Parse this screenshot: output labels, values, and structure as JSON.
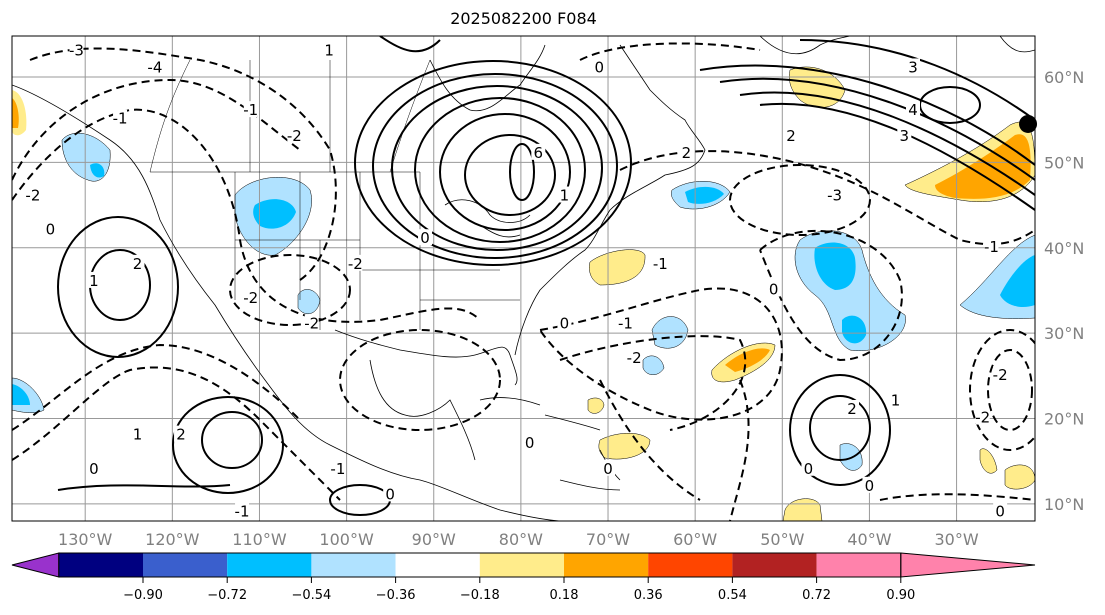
{
  "title": "2025082200 F084",
  "chart_data": {
    "type": "contour-map",
    "title": "2025082200 F084",
    "lon_range": [
      -138.4,
      -21
    ],
    "lat_range": [
      8,
      64.8
    ],
    "x_ticks": [
      {
        "v": -130,
        "label": "130°W"
      },
      {
        "v": -120,
        "label": "120°W"
      },
      {
        "v": -110,
        "label": "110°W"
      },
      {
        "v": -100,
        "label": "100°W"
      },
      {
        "v": -90,
        "label": "90°W"
      },
      {
        "v": -80,
        "label": "80°W"
      },
      {
        "v": -70,
        "label": "70°W"
      },
      {
        "v": -60,
        "label": "60°W"
      },
      {
        "v": -50,
        "label": "50°W"
      },
      {
        "v": -40,
        "label": "40°W"
      },
      {
        "v": -30,
        "label": "30°W"
      }
    ],
    "y_ticks": [
      {
        "v": 60,
        "label": "60°N"
      },
      {
        "v": 50,
        "label": "50°N"
      },
      {
        "v": 40,
        "label": "40°N"
      },
      {
        "v": 30,
        "label": "30°N"
      },
      {
        "v": 20,
        "label": "20°N"
      },
      {
        "v": 10,
        "label": "10°N"
      }
    ],
    "grid": true,
    "colorbar": {
      "orientation": "horizontal",
      "extend": "both",
      "levels": [
        -0.9,
        -0.72,
        -0.54,
        -0.36,
        -0.18,
        0.18,
        0.36,
        0.54,
        0.72,
        0.9
      ],
      "labels": [
        "−0.90",
        "−0.72",
        "−0.54",
        "−0.36",
        "−0.18",
        "0.18",
        "0.36",
        "0.54",
        "0.72",
        "0.90"
      ],
      "colors": [
        "#9932CC",
        "#000080",
        "#3A5FCD",
        "#00BFFF",
        "#B0E2FF",
        "#FFFFFF",
        "#FFEC8B",
        "#FFA500",
        "#FF4500",
        "#B22222",
        "#FF82AB"
      ]
    },
    "contour_labels": [
      {
        "lon": -131,
        "lat": 63,
        "text": "-3"
      },
      {
        "lon": -122,
        "lat": 61,
        "text": "-4"
      },
      {
        "lon": -126,
        "lat": 55,
        "text": "-1"
      },
      {
        "lon": -136,
        "lat": 46,
        "text": "-2"
      },
      {
        "lon": -134,
        "lat": 42,
        "text": "0"
      },
      {
        "lon": -129,
        "lat": 36,
        "text": "1"
      },
      {
        "lon": -124,
        "lat": 38,
        "text": "2"
      },
      {
        "lon": -102,
        "lat": 63,
        "text": "1"
      },
      {
        "lon": -111,
        "lat": 56,
        "text": "-1"
      },
      {
        "lon": -106,
        "lat": 53,
        "text": "-2"
      },
      {
        "lon": -71,
        "lat": 61,
        "text": "0"
      },
      {
        "lon": -78,
        "lat": 51,
        "text": "6"
      },
      {
        "lon": -75,
        "lat": 46,
        "text": "1"
      },
      {
        "lon": -91,
        "lat": 41,
        "text": "0"
      },
      {
        "lon": -99,
        "lat": 38,
        "text": "-2"
      },
      {
        "lon": -111,
        "lat": 34,
        "text": "-2"
      },
      {
        "lon": -104,
        "lat": 31,
        "text": "-2"
      },
      {
        "lon": -61,
        "lat": 51,
        "text": "2"
      },
      {
        "lon": -44,
        "lat": 46,
        "text": "-3"
      },
      {
        "lon": -49,
        "lat": 53,
        "text": "2"
      },
      {
        "lon": -35,
        "lat": 56,
        "text": "4"
      },
      {
        "lon": -36,
        "lat": 53,
        "text": "3"
      },
      {
        "lon": -35,
        "lat": 61,
        "text": "3"
      },
      {
        "lon": -26,
        "lat": 40,
        "text": "-1"
      },
      {
        "lon": -64,
        "lat": 38,
        "text": "-1"
      },
      {
        "lon": -51,
        "lat": 35,
        "text": "0"
      },
      {
        "lon": -75,
        "lat": 31,
        "text": "0"
      },
      {
        "lon": -68,
        "lat": 31,
        "text": "-1"
      },
      {
        "lon": -67,
        "lat": 27,
        "text": "-2"
      },
      {
        "lon": -79,
        "lat": 17,
        "text": "0"
      },
      {
        "lon": -101,
        "lat": 14,
        "text": "-1"
      },
      {
        "lon": -124,
        "lat": 18,
        "text": "1"
      },
      {
        "lon": -119,
        "lat": 18,
        "text": "2"
      },
      {
        "lon": -129,
        "lat": 14,
        "text": "0"
      },
      {
        "lon": -112,
        "lat": 9,
        "text": "-1"
      },
      {
        "lon": -95,
        "lat": 11,
        "text": "0"
      },
      {
        "lon": -42,
        "lat": 21,
        "text": "2"
      },
      {
        "lon": -37,
        "lat": 22,
        "text": "1"
      },
      {
        "lon": -47,
        "lat": 14,
        "text": "0"
      },
      {
        "lon": -40,
        "lat": 12,
        "text": "0"
      },
      {
        "lon": -25,
        "lat": 9,
        "text": "0"
      },
      {
        "lon": -25,
        "lat": 25,
        "text": "-2"
      },
      {
        "lon": -27,
        "lat": 20,
        "text": "-2"
      },
      {
        "lon": -70,
        "lat": 14,
        "text": "0"
      }
    ],
    "marker": {
      "lon": -21.8,
      "lat": 54.5
    }
  }
}
